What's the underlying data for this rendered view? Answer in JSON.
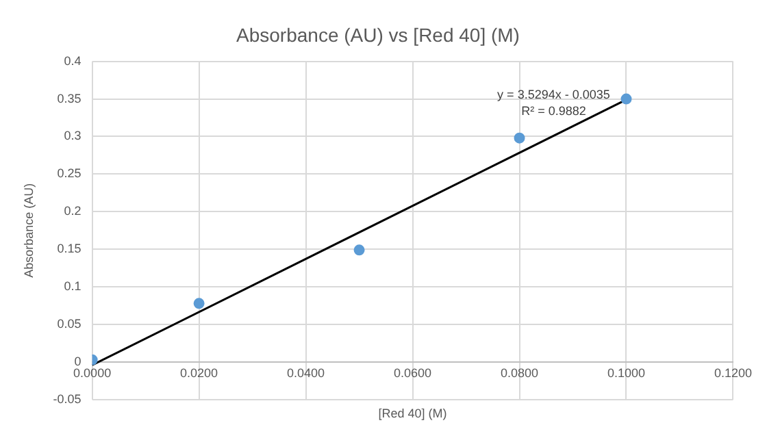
{
  "chart_data": {
    "type": "scatter",
    "title": "Absorbance (AU) vs [Red 40] (M)",
    "xlabel": "[Red 40] (M)",
    "ylabel": "Absorbance (AU)",
    "x": [
      0,
      0.02,
      0.05,
      0.08,
      0.1
    ],
    "series": [
      {
        "type": "scatter",
        "color": "#5b9bd5",
        "values": [
          0.003,
          0.078,
          0.149,
          0.298,
          0.35
        ],
        "marker": "circle"
      },
      {
        "type": "line",
        "color": "#000000",
        "x": [
          0,
          0.1
        ],
        "values": [
          -0.004,
          0.349
        ],
        "marker": "none",
        "line_style": "solid"
      }
    ],
    "xlim": [
      0,
      0.12
    ],
    "xticks": [
      {
        "value": 0,
        "label": "0.0000"
      },
      {
        "value": 0.02,
        "label": "0.0200"
      },
      {
        "value": 0.04,
        "label": "0.0400"
      },
      {
        "value": 0.06,
        "label": "0.0600"
      },
      {
        "value": 0.08,
        "label": "0.0800"
      },
      {
        "value": 0.1,
        "label": "0.1000"
      },
      {
        "value": 0.12,
        "label": "0.1200"
      }
    ],
    "ylim": [
      -0.05,
      0.4
    ],
    "yticks": [
      -0.05,
      0,
      0.05,
      0.1,
      0.15,
      0.2,
      0.25,
      0.3,
      0.35,
      0.4
    ],
    "annotations": [
      "y = 3.5294x - 0.0035",
      "R² = 0.9882"
    ],
    "grid": true,
    "legend": false
  }
}
